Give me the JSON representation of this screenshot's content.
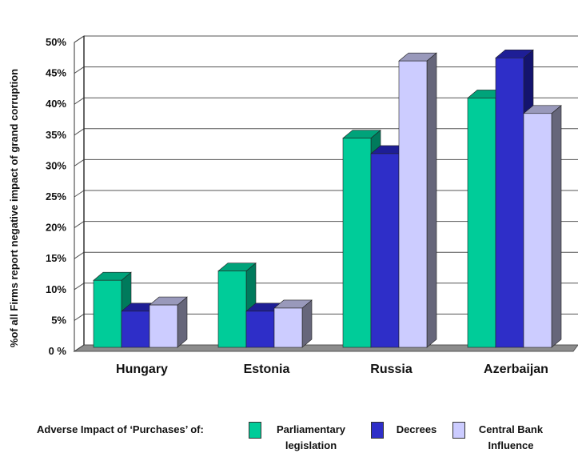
{
  "chart_data": {
    "type": "bar",
    "title": "",
    "xlabel": "",
    "ylabel": "%of all Firms report negative impact of grand corruption",
    "categories": [
      "Hungary",
      "Estonia",
      "Russia",
      "Azerbaijan"
    ],
    "ylim": [
      0,
      50
    ],
    "yticks": [
      "0 %",
      "5%",
      "10%",
      "15%",
      "20%",
      "25%",
      "30%",
      "35%",
      "40%",
      "45%",
      "50%"
    ],
    "grid": true,
    "three_d": true,
    "legend_position": "bottom",
    "legend_title": "Adverse Impact of ‘Purchases’ of:",
    "series": [
      {
        "name": "Parliamentary legislation",
        "name_lines": [
          "Parliamentary",
          "legislation"
        ],
        "values": [
          11.5,
          13,
          34.5,
          41
        ],
        "color": "#00cc99",
        "side_color": "#007a5c",
        "top_color": "#00a37a"
      },
      {
        "name": "Decrees",
        "name_lines": [
          "Decrees"
        ],
        "values": [
          6.5,
          6.5,
          32,
          47.5
        ],
        "color": "#2e2ec8",
        "side_color": "#14146e",
        "top_color": "#1e1e96"
      },
      {
        "name": "Central Bank Influence",
        "name_lines": [
          "Central Bank",
          "Influence"
        ],
        "values": [
          7.5,
          7,
          47,
          38.5
        ],
        "color": "#ccccff",
        "side_color": "#66667a",
        "top_color": "#9999bb"
      }
    ]
  }
}
